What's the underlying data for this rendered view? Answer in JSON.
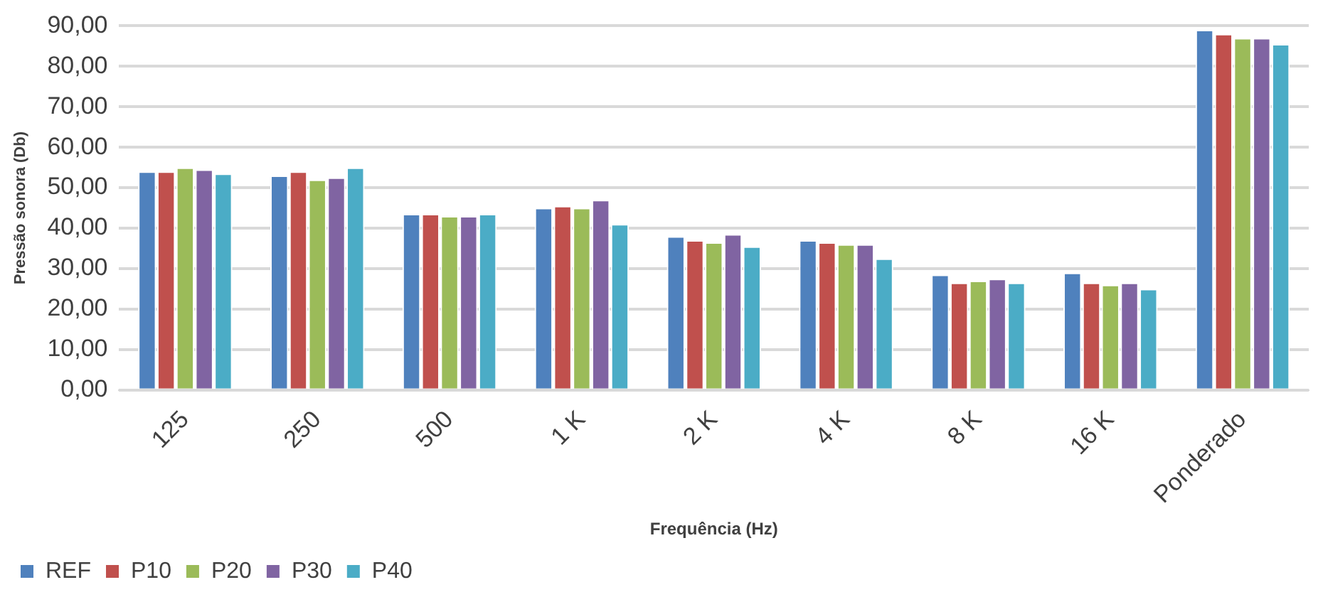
{
  "chart_data": {
    "type": "bar",
    "xlabel": "Frequência (Hz)",
    "ylabel": "Pressão sonora (Db)",
    "categories": [
      "125",
      "250",
      "500",
      "1 K",
      "2 K",
      "4 K",
      "8 K",
      "16 K",
      "Ponderado"
    ],
    "series": [
      {
        "name": "REF",
        "color": "#4f81bd",
        "values": [
          54,
          53,
          43.5,
          45,
          38,
          37,
          28.5,
          29,
          89
        ]
      },
      {
        "name": "P10",
        "color": "#c0504d",
        "values": [
          54,
          54,
          43.5,
          45.5,
          37,
          36.5,
          26.5,
          26.5,
          88
        ]
      },
      {
        "name": "P20",
        "color": "#9bbb59",
        "values": [
          55,
          52,
          43,
          45,
          36.5,
          36,
          27,
          26,
          87
        ]
      },
      {
        "name": "P30",
        "color": "#8064a2",
        "values": [
          54.5,
          52.5,
          43,
          47,
          38.5,
          36,
          27.5,
          26.5,
          87
        ]
      },
      {
        "name": "P40",
        "color": "#4bacc6",
        "values": [
          53.5,
          55,
          43.5,
          41,
          35.5,
          32.5,
          26.5,
          25,
          85.5
        ]
      }
    ],
    "ylim": [
      0,
      90
    ],
    "yticks": [
      {
        "value": 0,
        "label": "0,00"
      },
      {
        "value": 10,
        "label": "10,00"
      },
      {
        "value": 20,
        "label": "20,00"
      },
      {
        "value": 30,
        "label": "30,00"
      },
      {
        "value": 40,
        "label": "40,00"
      },
      {
        "value": 50,
        "label": "50,00"
      },
      {
        "value": 60,
        "label": "60,00"
      },
      {
        "value": 70,
        "label": "70,00"
      },
      {
        "value": 80,
        "label": "80,00"
      },
      {
        "value": 90,
        "label": "90,00"
      }
    ],
    "grid": "y",
    "legend": "bottom left"
  }
}
